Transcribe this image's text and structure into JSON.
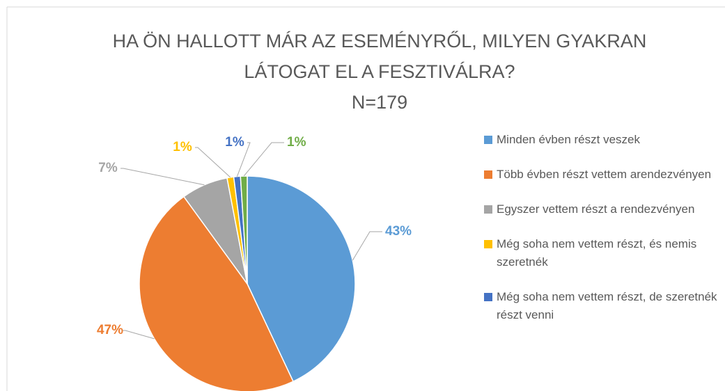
{
  "chart_data": {
    "type": "pie",
    "title": [
      "HA ÖN HALLOTT MÁR AZ ESEMÉNYRŐL, MILYEN GYAKRAN",
      "LÁTOGAT EL A FESZTIVÁLRA?",
      "N=179"
    ],
    "categories": [
      "Minden évben részt veszek",
      "Több évben részt vettem arendezvényen",
      "Egyszer vettem részt a rendezvényen",
      "Még soha nem vettem részt, és nemis szeretnék",
      "Még soha nem vettem részt, de szeretnék részt venni",
      null
    ],
    "values": [
      43,
      47,
      7,
      1,
      1,
      1
    ],
    "value_labels": [
      "43%",
      "47%",
      "7%",
      "1%",
      "1%",
      "1%"
    ],
    "colors": [
      "#5b9bd5",
      "#ed7d31",
      "#a5a5a5",
      "#ffc000",
      "#4472c4",
      "#70ad47"
    ],
    "legend": "right"
  }
}
